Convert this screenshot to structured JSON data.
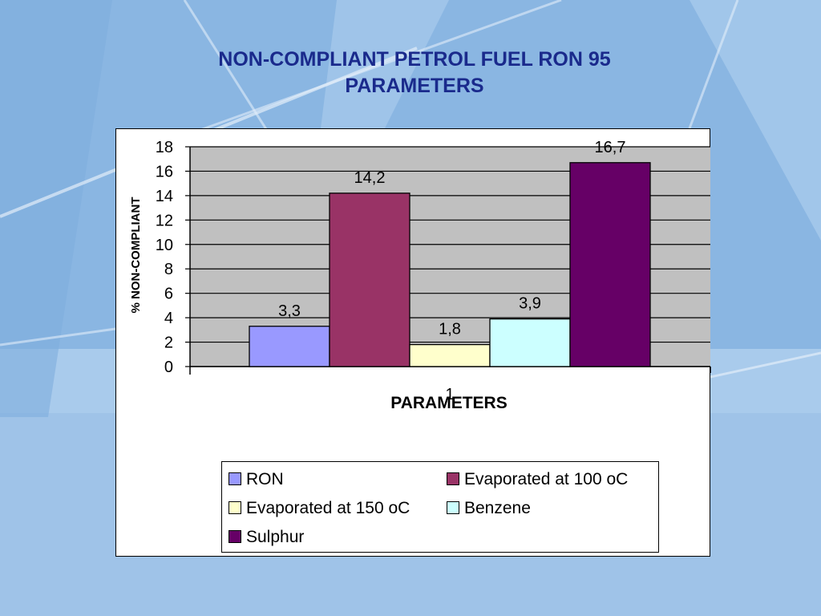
{
  "slide": {
    "title_line1": "NON-COMPLIANT PETROL FUEL RON 95",
    "title_line2": "PARAMETERS"
  },
  "chart_data": {
    "type": "bar",
    "categories": [
      "1"
    ],
    "series": [
      {
        "name": "RON",
        "values": [
          3.3
        ],
        "label": "3,3",
        "color": "#9999ff"
      },
      {
        "name": "Evaporated at 100 oC",
        "values": [
          14.2
        ],
        "label": "14,2",
        "color": "#993366"
      },
      {
        "name": "Evaporated at 150 oC",
        "values": [
          1.8
        ],
        "label": "1,8",
        "color": "#ffffcc"
      },
      {
        "name": "Benzene",
        "values": [
          3.9
        ],
        "label": "3,9",
        "color": "#ccffff"
      },
      {
        "name": "Sulphur",
        "values": [
          16.7
        ],
        "label": "16,7",
        "color": "#660066"
      }
    ],
    "xlabel": "PARAMETERS",
    "ylabel": "% NON-COMPLIANT",
    "ylim": [
      0,
      18
    ],
    "yticks": [
      0,
      2,
      4,
      6,
      8,
      10,
      12,
      14,
      16,
      18
    ],
    "grid": true,
    "plot_background": "#c0c0c0",
    "legend_position": "bottom"
  }
}
